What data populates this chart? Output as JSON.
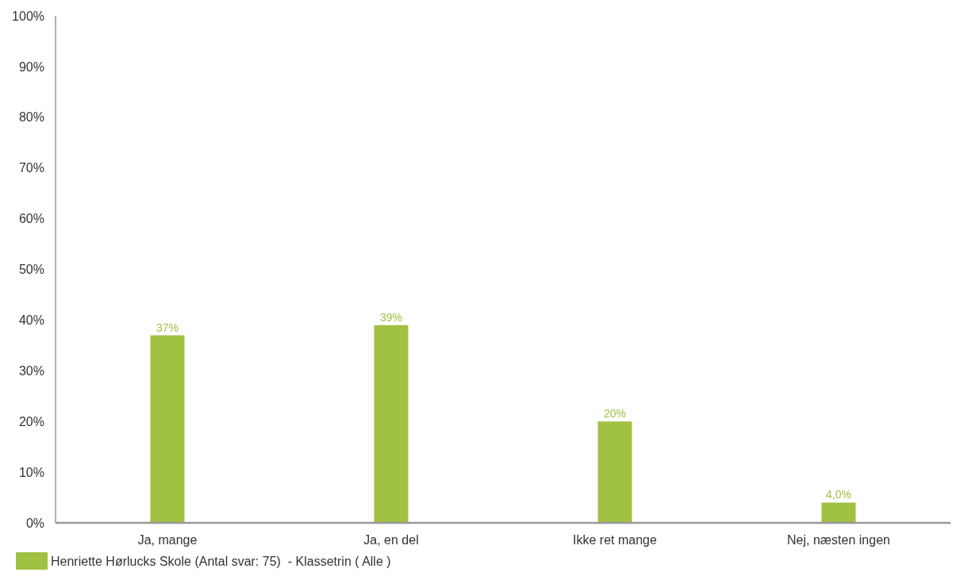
{
  "chart_data": {
    "type": "bar",
    "categories": [
      "Ja, mange",
      "Ja, en del",
      "Ikke ret mange",
      "Nej, næsten ingen"
    ],
    "series": [
      {
        "name": "Henriette Hørlucks Skole (Antal svar: 75)  - Klassetrin ( Alle )",
        "color": "#a1c143",
        "values": [
          37,
          39,
          20,
          4
        ],
        "value_labels": [
          "37%",
          "39%",
          "20%",
          "4,0%"
        ]
      }
    ],
    "ylim": [
      0,
      100
    ],
    "yticks": [
      {
        "value": 0,
        "label": "0%"
      },
      {
        "value": 10,
        "label": "10%"
      },
      {
        "value": 20,
        "label": "20%"
      },
      {
        "value": 30,
        "label": "30%"
      },
      {
        "value": 40,
        "label": "40%"
      },
      {
        "value": 50,
        "label": "50%"
      },
      {
        "value": 60,
        "label": "60%"
      },
      {
        "value": 70,
        "label": "70%"
      },
      {
        "value": 80,
        "label": "80%"
      },
      {
        "value": 90,
        "label": "90%"
      },
      {
        "value": 100,
        "label": "100%"
      }
    ],
    "grid": false,
    "legend": "bottom left"
  }
}
